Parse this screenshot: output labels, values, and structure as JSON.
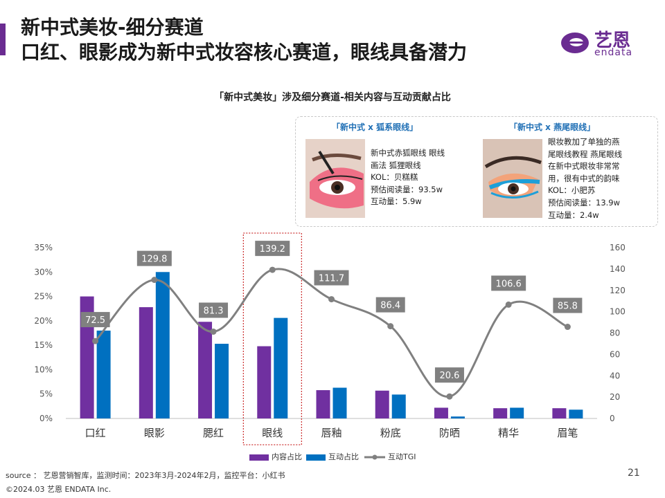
{
  "header": {
    "title_line1": "新中式美妆-细分赛道",
    "title_line2": "口红、眼影成为新中式妆容核心赛道，眼线具备潜力"
  },
  "logo": {
    "name_cn": "艺恩",
    "name_en": "endata",
    "color": "#6a2c91"
  },
  "callouts": [
    {
      "title": "「新中式 x 狐系眼线」",
      "lines": [
        "新中式赤狐眼线 眼线",
        "画法 狐狸眼线",
        "KOL：贝糕糕",
        "预估阅读量：93.5w",
        "互动量：5.9w"
      ]
    },
    {
      "title": "「新中式 x 燕尾眼线」",
      "lines": [
        "眼妆教加了单独的燕",
        "尾眼线教程 燕尾眼线",
        "在新中式眼妆非常常",
        "用，很有中式的韵味",
        "KOL：小肥苏",
        "预估阅读量：13.9w",
        "互动量：2.4w"
      ]
    }
  ],
  "chart_data": {
    "type": "bar",
    "title": "「新中式美妆」涉及细分赛道-相关内容与互动贡献占比",
    "categories": [
      "口红",
      "眼影",
      "腮红",
      "眼线",
      "唇釉",
      "粉底",
      "防晒",
      "精华",
      "眉笔"
    ],
    "series": [
      {
        "name": "内容占比",
        "type": "bar",
        "axis": "left",
        "color": "#7030a0",
        "values": [
          25.0,
          22.8,
          19.8,
          14.8,
          5.8,
          5.7,
          2.2,
          2.1,
          2.1
        ]
      },
      {
        "name": "互动占比",
        "type": "bar",
        "axis": "left",
        "color": "#0070c0",
        "values": [
          18.0,
          30.0,
          15.3,
          20.6,
          6.3,
          4.9,
          0.4,
          2.2,
          1.8
        ]
      },
      {
        "name": "互动TGI",
        "type": "line",
        "axis": "right",
        "color": "#808080",
        "values": [
          72.5,
          129.8,
          81.3,
          139.2,
          111.7,
          86.4,
          20.6,
          106.6,
          85.8
        ],
        "labels": [
          "72.5",
          "129.8",
          "81.3",
          "139.2",
          "111.7",
          "86.4",
          "20.6",
          "106.6",
          "85.8"
        ]
      }
    ],
    "y_left": {
      "min": 0,
      "max": 35,
      "ticks": [
        "0%",
        "5%",
        "10%",
        "15%",
        "20%",
        "25%",
        "30%",
        "35%"
      ]
    },
    "y_right": {
      "min": 0,
      "max": 160,
      "ticks": [
        "0",
        "20",
        "40",
        "60",
        "80",
        "100",
        "120",
        "140",
        "160"
      ]
    },
    "highlight_category": "眼线",
    "grid": false,
    "legend_position": "bottom"
  },
  "footer": {
    "source": "source ： 艺恩营销智库，监测时间：2023年3月-2024年2月，监控平台：小红书",
    "copyright": "©2024.03 艺恩 ENDATA Inc.",
    "page_number": "21"
  }
}
